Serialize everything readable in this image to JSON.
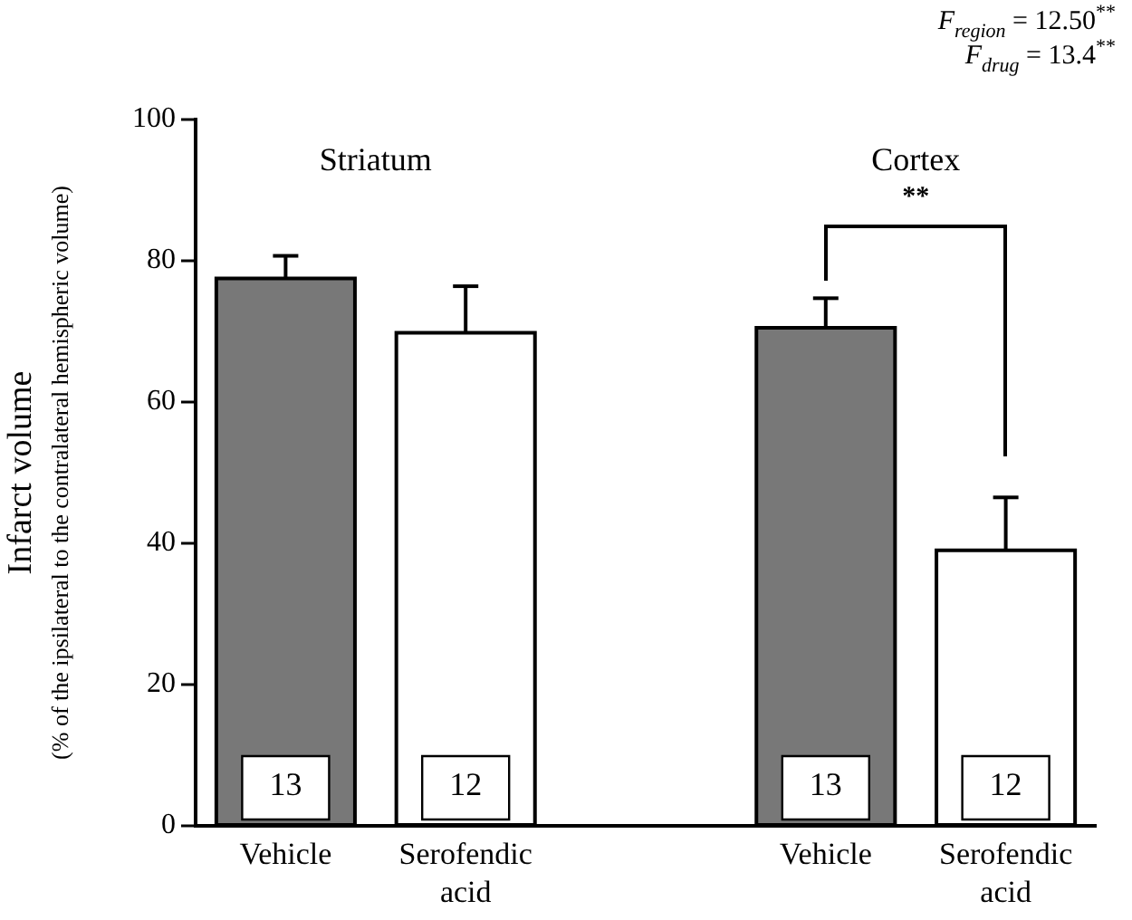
{
  "chart_data": {
    "type": "bar",
    "categories": [
      "Vehicle",
      "Serofendic acid",
      null,
      "Vehicle",
      "Serofendic acid"
    ],
    "values": [
      77.5,
      69.8,
      null,
      70.5,
      39
    ],
    "colors": [
      "#787878",
      "#ffffff",
      null,
      "#787878",
      "#ffffff"
    ],
    "errors": [
      [
        77.5,
        80.7
      ],
      [
        69.8,
        76.4
      ],
      null,
      [
        70.5,
        74.7
      ],
      [
        39,
        46.5
      ]
    ],
    "ylabel": "Infarct volume\n(% of the ipsilateral to the contralateral hemispheric volume)",
    "ylim": [
      0,
      100
    ],
    "yticks": [
      0,
      20,
      40,
      60,
      80,
      100
    ],
    "grid": false,
    "annotations": [
      "Striatum",
      "Cortex",
      "**",
      "13",
      "12",
      "13",
      "12",
      "F$_{region}$ = 12.50$^{**}$",
      "F$_{drug}$ = 13.4$^{**}$"
    ]
  }
}
